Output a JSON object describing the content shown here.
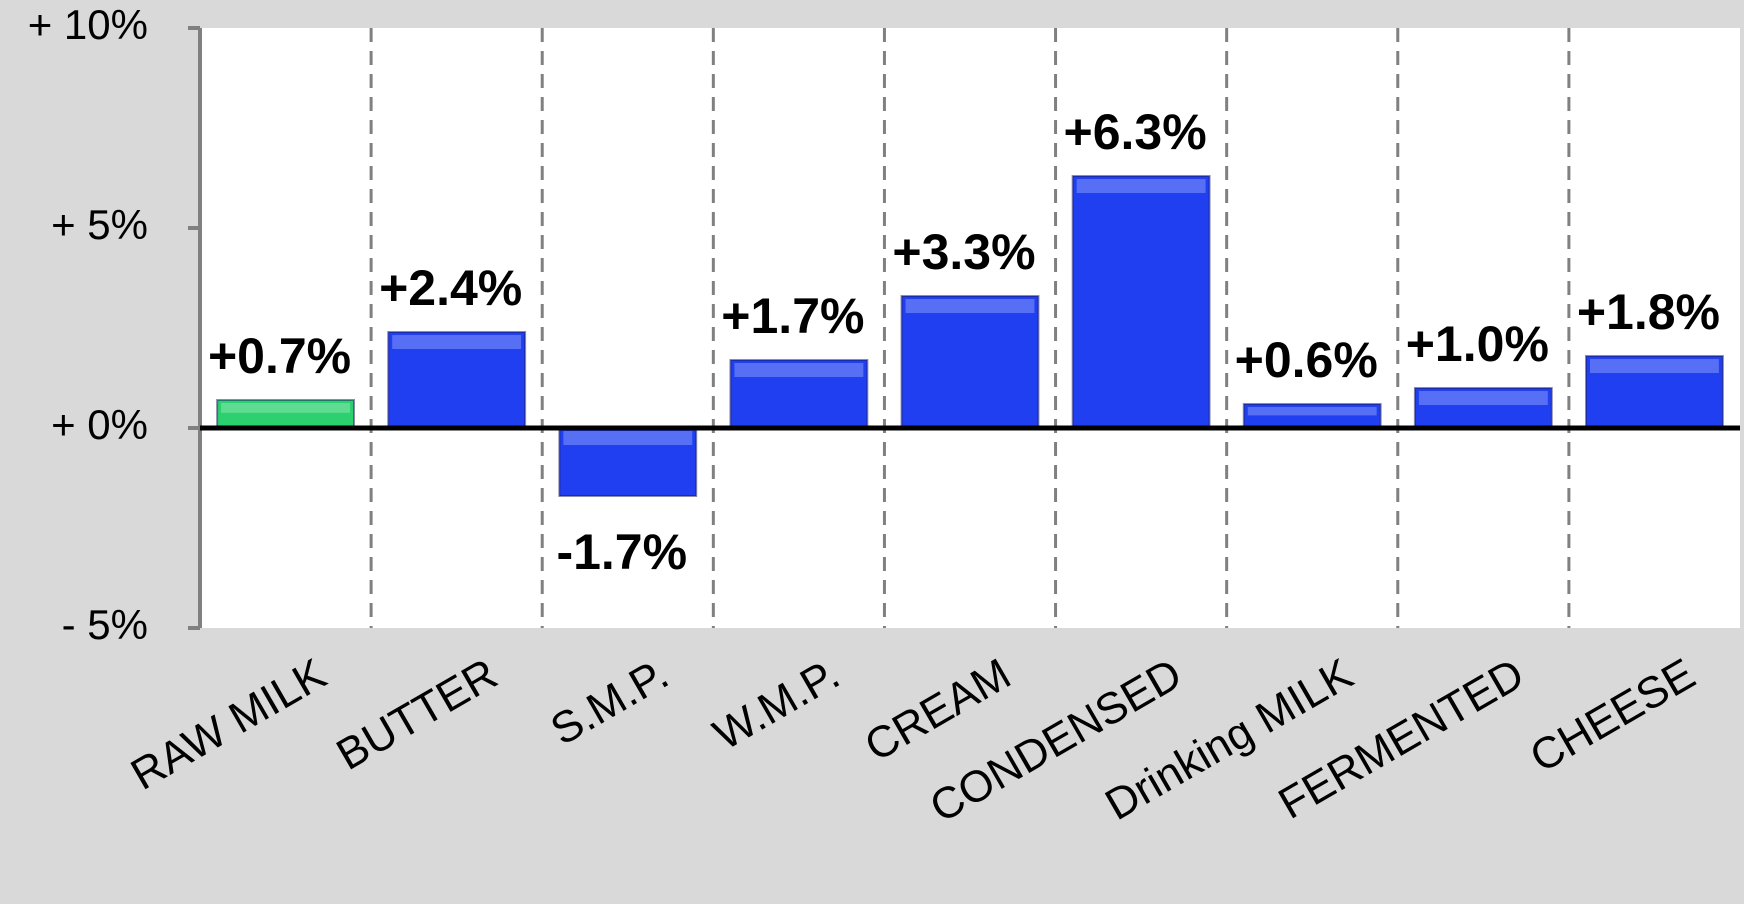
{
  "chart_data": {
    "type": "bar",
    "categories": [
      "RAW MILK",
      "BUTTER",
      "S.M.P.",
      "W.M.P.",
      "CREAM",
      "CONDENSED",
      "Drinking MILK",
      "FERMENTED",
      "CHEESE"
    ],
    "values": [
      0.7,
      2.4,
      -1.7,
      1.7,
      3.3,
      6.3,
      0.6,
      1.0,
      1.8
    ],
    "value_labels": [
      "+0.7%",
      "+2.4%",
      "-1.7%",
      "+1.7%",
      "+3.3%",
      "+6.3%",
      "+0.6%",
      "+1.0%",
      "+1.8%"
    ],
    "colors": [
      "#2bd16e",
      "#1f3ff0",
      "#1f3ff0",
      "#1f3ff0",
      "#1f3ff0",
      "#1f3ff0",
      "#1f3ff0",
      "#1f3ff0",
      "#1f3ff0"
    ],
    "ylim": [
      -5,
      10
    ],
    "yticks": [
      {
        "value": -5,
        "label": "- 5%"
      },
      {
        "value": 0,
        "label": "+ 0%"
      },
      {
        "value": 5,
        "label": "+ 5%"
      },
      {
        "value": 10,
        "label": "+ 10%"
      }
    ],
    "separators": true
  }
}
